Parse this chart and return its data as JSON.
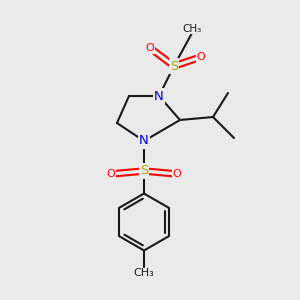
{
  "bg_color": "#eaeaea",
  "bond_color": "#1a1a1a",
  "N_color": "#0000cc",
  "S_color": "#aaaa00",
  "O_color": "#ff0000",
  "line_width": 1.5,
  "font_size_atom": 9.5,
  "font_size_small": 8.0,
  "xlim": [
    0,
    10
  ],
  "ylim": [
    0,
    10
  ]
}
